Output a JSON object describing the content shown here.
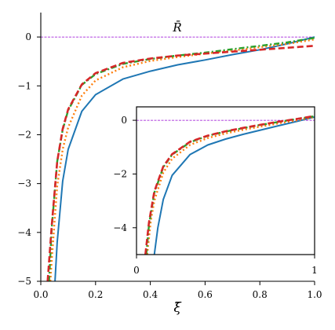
{
  "chart_data": [
    {
      "type": "line",
      "xlabel": "ξ̄",
      "ylabel": "",
      "annotation": "R̄",
      "xlim": [
        0.0,
        1.0
      ],
      "ylim": [
        -5.0,
        0.5
      ],
      "grid": false,
      "xticks": [
        0.0,
        0.2,
        0.4,
        0.6,
        0.8,
        1.0
      ],
      "xtick_labels": [
        "0.0",
        "0.2",
        "0.4",
        "0.6",
        "0.8",
        "1.0"
      ],
      "yticks": [
        0,
        -1,
        -2,
        -3,
        -4,
        -5
      ],
      "ytick_labels": [
        "0",
        "−1",
        "−2",
        "−3",
        "−4",
        "−5"
      ],
      "reference_line": {
        "y": 0,
        "color": "#9400d3",
        "style": "dashed"
      },
      "series": [
        {
          "color": "#1f77b4",
          "style": "solid",
          "x": [
            0.052,
            0.06,
            0.08,
            0.1,
            0.15,
            0.2,
            0.3,
            0.4,
            0.5,
            0.6,
            0.7,
            0.8,
            0.9,
            1.0
          ],
          "y": [
            -5.0,
            -4.2,
            -2.95,
            -2.3,
            -1.52,
            -1.18,
            -0.86,
            -0.7,
            -0.57,
            -0.47,
            -0.36,
            -0.26,
            -0.14,
            0.0
          ]
        },
        {
          "color": "#ff7f0e",
          "style": "dotted",
          "x": [
            0.035,
            0.04,
            0.06,
            0.08,
            0.1,
            0.15,
            0.2,
            0.3,
            0.4,
            0.5,
            0.6,
            0.7,
            0.8,
            0.9,
            1.0
          ],
          "y": [
            -5.0,
            -4.55,
            -3.05,
            -2.3,
            -1.85,
            -1.2,
            -0.89,
            -0.62,
            -0.49,
            -0.41,
            -0.34,
            -0.28,
            -0.21,
            -0.14,
            -0.05
          ]
        },
        {
          "color": "#2ca02c",
          "style": "dashdot",
          "x": [
            0.03,
            0.04,
            0.06,
            0.08,
            0.1,
            0.15,
            0.2,
            0.3,
            0.4,
            0.5,
            0.6,
            0.7,
            0.8,
            0.9,
            1.0
          ],
          "y": [
            -5.0,
            -3.9,
            -2.55,
            -1.9,
            -1.5,
            -0.98,
            -0.76,
            -0.55,
            -0.45,
            -0.38,
            -0.32,
            -0.25,
            -0.18,
            -0.11,
            -0.02
          ]
        },
        {
          "color": "#d62728",
          "style": "dashed",
          "x": [
            0.025,
            0.04,
            0.06,
            0.08,
            0.1,
            0.15,
            0.2,
            0.3,
            0.4,
            0.5,
            0.6,
            0.7,
            0.8,
            0.9,
            1.0
          ],
          "y": [
            -5.0,
            -3.85,
            -2.55,
            -1.88,
            -1.48,
            -0.97,
            -0.74,
            -0.53,
            -0.44,
            -0.38,
            -0.34,
            -0.3,
            -0.26,
            -0.22,
            -0.18
          ]
        }
      ]
    },
    {
      "type": "line",
      "xlim": [
        0.0,
        1.0
      ],
      "ylim": [
        -5.0,
        0.5
      ],
      "grid": false,
      "xticks": [
        0,
        1
      ],
      "xtick_labels": [
        "0",
        "1"
      ],
      "yticks": [
        0,
        -2,
        -4
      ],
      "ytick_labels": [
        "0",
        "−2",
        "−4"
      ],
      "reference_line": {
        "y": 0,
        "color": "#9400d3",
        "style": "dashed"
      },
      "series": [
        {
          "color": "#1f77b4",
          "style": "solid",
          "x": [
            0.1,
            0.12,
            0.15,
            0.2,
            0.3,
            0.4,
            0.5,
            0.6,
            0.7,
            0.8,
            0.9,
            1.0
          ],
          "y": [
            -5.0,
            -4.0,
            -2.95,
            -2.05,
            -1.28,
            -0.92,
            -0.7,
            -0.52,
            -0.36,
            -0.2,
            -0.04,
            0.12
          ]
        },
        {
          "color": "#ff7f0e",
          "style": "dotted",
          "x": [
            0.06,
            0.08,
            0.1,
            0.15,
            0.2,
            0.3,
            0.4,
            0.5,
            0.6,
            0.7,
            0.8,
            0.9,
            1.0
          ],
          "y": [
            -5.0,
            -3.75,
            -3.0,
            -1.95,
            -1.43,
            -0.92,
            -0.66,
            -0.49,
            -0.35,
            -0.23,
            -0.11,
            0.0,
            0.12
          ]
        },
        {
          "color": "#2ca02c",
          "style": "dashdot",
          "x": [
            0.055,
            0.07,
            0.1,
            0.15,
            0.2,
            0.3,
            0.4,
            0.5,
            0.6,
            0.7,
            0.8,
            0.9,
            1.0
          ],
          "y": [
            -5.0,
            -3.9,
            -2.7,
            -1.75,
            -1.28,
            -0.82,
            -0.58,
            -0.42,
            -0.29,
            -0.17,
            -0.06,
            0.05,
            0.15
          ]
        },
        {
          "color": "#d62728",
          "style": "dashed",
          "x": [
            0.05,
            0.07,
            0.1,
            0.15,
            0.2,
            0.3,
            0.4,
            0.5,
            0.6,
            0.7,
            0.8,
            0.9,
            1.0
          ],
          "y": [
            -5.0,
            -3.8,
            -2.65,
            -1.72,
            -1.26,
            -0.8,
            -0.57,
            -0.41,
            -0.28,
            -0.16,
            -0.05,
            0.05,
            0.16
          ]
        }
      ]
    }
  ]
}
